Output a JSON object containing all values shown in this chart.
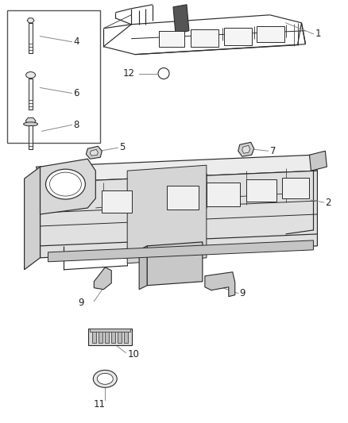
{
  "bg_color": "#ffffff",
  "ec": "#2a2a2a",
  "leader_color": "#888888",
  "figsize": [
    4.38,
    5.33
  ],
  "dpi": 100,
  "label_fontsize": 8.5,
  "label_color": "#222222"
}
